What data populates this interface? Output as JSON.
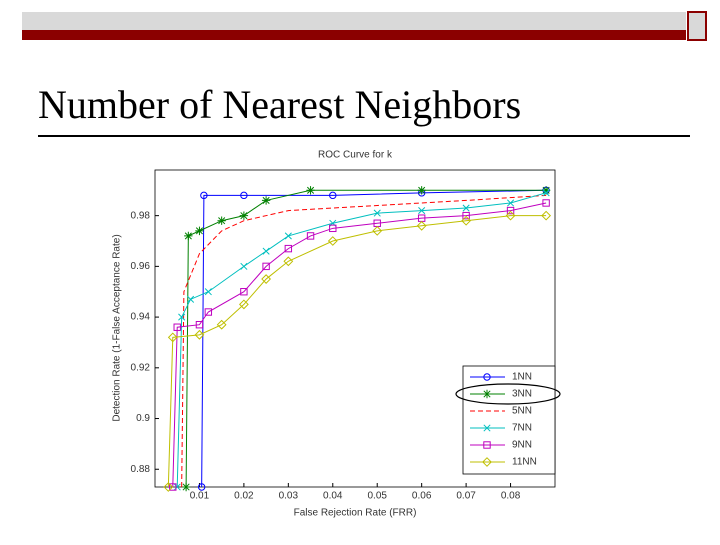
{
  "slide_title": "Number of Nearest Neighbors",
  "chart_data": {
    "type": "line",
    "title": "ROC Curve for k",
    "x_label": "False Rejection Rate (FRR)",
    "y_label": "Detection Rate (1-False Acceptance Rate)",
    "xlim": [
      0,
      0.09
    ],
    "xticks": [
      0.01,
      0.02,
      0.03,
      0.04,
      0.05,
      0.06,
      0.07,
      0.08
    ],
    "ylim": [
      0.873,
      0.998
    ],
    "yticks": [
      0.88,
      0.9,
      0.92,
      0.94,
      0.96,
      0.98
    ],
    "legend": "lower right",
    "series": [
      {
        "name": "1NN",
        "color": "#0000ff",
        "marker": "circle",
        "x": [
          0.0105,
          0.011,
          0.02,
          0.04,
          0.06,
          0.088
        ],
        "values": [
          0.873,
          0.988,
          0.988,
          0.988,
          0.989,
          0.99
        ]
      },
      {
        "name": "3NN",
        "color": "#008000",
        "marker": "star",
        "x": [
          0.007,
          0.0075,
          0.01,
          0.015,
          0.02,
          0.025,
          0.035,
          0.06,
          0.088
        ],
        "values": [
          0.873,
          0.972,
          0.974,
          0.978,
          0.98,
          0.986,
          0.99,
          0.99,
          0.99
        ]
      },
      {
        "name": "5NN",
        "color": "#ff0000",
        "linestyle": "dashed",
        "x": [
          0.006,
          0.0065,
          0.01,
          0.015,
          0.02,
          0.03,
          0.05,
          0.07,
          0.088
        ],
        "values": [
          0.873,
          0.95,
          0.965,
          0.974,
          0.978,
          0.982,
          0.984,
          0.986,
          0.988
        ]
      },
      {
        "name": "7NN",
        "color": "#00bfbf",
        "marker": "x",
        "x": [
          0.005,
          0.006,
          0.008,
          0.012,
          0.02,
          0.025,
          0.03,
          0.04,
          0.05,
          0.06,
          0.07,
          0.08,
          0.088
        ],
        "values": [
          0.873,
          0.94,
          0.947,
          0.95,
          0.96,
          0.966,
          0.972,
          0.977,
          0.981,
          0.982,
          0.983,
          0.985,
          0.989
        ]
      },
      {
        "name": "9NN",
        "color": "#bf00bf",
        "marker": "square",
        "x": [
          0.004,
          0.005,
          0.01,
          0.012,
          0.02,
          0.025,
          0.03,
          0.035,
          0.04,
          0.05,
          0.06,
          0.07,
          0.08,
          0.088
        ],
        "values": [
          0.873,
          0.936,
          0.937,
          0.942,
          0.95,
          0.96,
          0.967,
          0.972,
          0.975,
          0.977,
          0.979,
          0.98,
          0.982,
          0.985
        ]
      },
      {
        "name": "11NN",
        "color": "#bfbf00",
        "marker": "diamond",
        "x": [
          0.003,
          0.004,
          0.01,
          0.015,
          0.02,
          0.025,
          0.03,
          0.04,
          0.05,
          0.06,
          0.07,
          0.08,
          0.088
        ],
        "values": [
          0.873,
          0.932,
          0.933,
          0.937,
          0.945,
          0.955,
          0.962,
          0.97,
          0.974,
          0.976,
          0.978,
          0.98,
          0.98
        ]
      }
    ]
  }
}
